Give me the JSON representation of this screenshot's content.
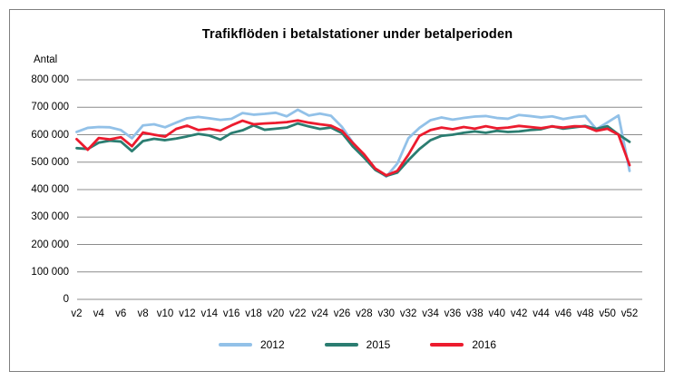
{
  "y_axis_title": "Antal",
  "chart_data": {
    "type": "line",
    "title": "Trafikflöden i betalstationer under betalperioden",
    "ylabel": "Antal",
    "xlabel": "",
    "ylim": [
      0,
      800000
    ],
    "grid": true,
    "legend_position": "bottom",
    "y_tick_labels": [
      "800 000",
      "700 000",
      "600 000",
      "500 000",
      "400 000",
      "300 000",
      "200 000",
      "100 000",
      "0"
    ],
    "y_tick_values": [
      800000,
      700000,
      600000,
      500000,
      400000,
      300000,
      200000,
      100000,
      0
    ],
    "x_start_week": 2,
    "x_week_step": 1,
    "x_tick_labels": [
      "v2",
      "v4",
      "v6",
      "v8",
      "v10",
      "v12",
      "v14",
      "v16",
      "v18",
      "v20",
      "v22",
      "v24",
      "v26",
      "v28",
      "v30",
      "v32",
      "v34",
      "v36",
      "v38",
      "v40",
      "v42",
      "v44",
      "v46",
      "v48",
      "v50",
      "v52"
    ],
    "series": [
      {
        "name": "2012",
        "color": "#92C1E8",
        "values": [
          610000,
          625000,
          628000,
          627000,
          617000,
          587000,
          634000,
          638000,
          627000,
          644000,
          660000,
          665000,
          660000,
          654000,
          658000,
          679000,
          673000,
          676000,
          680000,
          667000,
          691000,
          670000,
          677000,
          669000,
          628000,
          570000,
          523000,
          475000,
          447000,
          495000,
          587000,
          625000,
          653000,
          663000,
          655000,
          661000,
          666000,
          668000,
          661000,
          658000,
          672000,
          668000,
          663000,
          667000,
          657000,
          664000,
          668000,
          620000,
          645000,
          670000,
          468000
        ]
      },
      {
        "name": "2015",
        "color": "#2B7D71",
        "values": [
          551000,
          548000,
          571000,
          578000,
          575000,
          540000,
          577000,
          585000,
          580000,
          586000,
          594000,
          603000,
          597000,
          582000,
          606000,
          616000,
          634000,
          618000,
          622000,
          626000,
          641000,
          630000,
          621000,
          626000,
          606000,
          556000,
          516000,
          472000,
          450000,
          462000,
          507000,
          548000,
          580000,
          596000,
          600000,
          607000,
          612000,
          607000,
          614000,
          610000,
          612000,
          617000,
          620000,
          631000,
          622000,
          627000,
          632000,
          621000,
          631000,
          601000,
          574000
        ]
      },
      {
        "name": "2016",
        "color": "#EC1B2E",
        "values": [
          584000,
          545000,
          588000,
          583000,
          591000,
          558000,
          608000,
          600000,
          593000,
          621000,
          633000,
          617000,
          622000,
          614000,
          634000,
          651000,
          638000,
          641000,
          643000,
          646000,
          652000,
          644000,
          638000,
          633000,
          614000,
          569000,
          528000,
          477000,
          452000,
          468000,
          527000,
          596000,
          617000,
          626000,
          620000,
          628000,
          622000,
          631000,
          623000,
          626000,
          632000,
          628000,
          624000,
          630000,
          626000,
          631000,
          630000,
          614000,
          622000,
          600000,
          489000
        ]
      }
    ]
  },
  "colors": {
    "gridline": "#8C8C8C",
    "frame_border": "#7F7F7F",
    "text": "#000000"
  }
}
